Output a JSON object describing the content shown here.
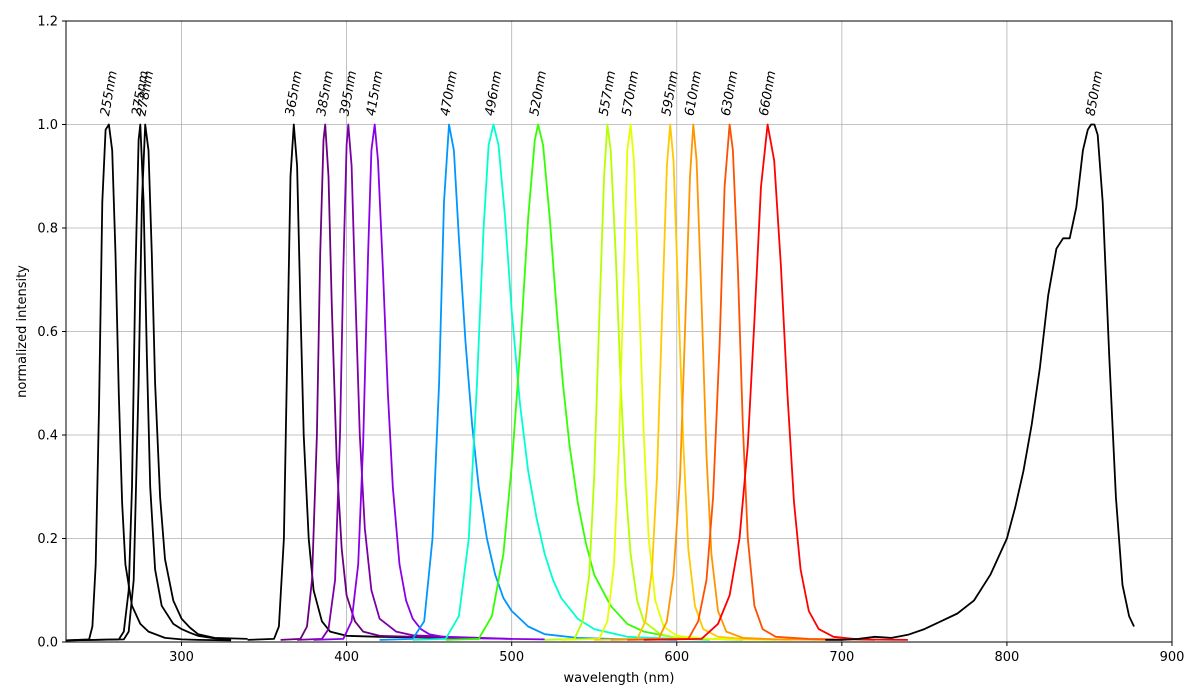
{
  "chart_data": {
    "type": "line",
    "title": "",
    "xlabel": "wavelength (nm)",
    "ylabel": "normalized intensity",
    "xlim": [
      230,
      900
    ],
    "ylim": [
      0,
      1.2
    ],
    "xticks": [
      300,
      400,
      500,
      600,
      700,
      800,
      900
    ],
    "yticks": [
      0.0,
      0.2,
      0.4,
      0.6,
      0.8,
      1.0,
      1.2
    ],
    "ytick_labels": [
      "0.0",
      "0.2",
      "0.4",
      "0.6",
      "0.8",
      "1.0",
      "1.2"
    ],
    "grid": true,
    "legend": false,
    "series": [
      {
        "label": "255nm",
        "color": "#000000",
        "peak": 256,
        "fwhm": 9,
        "tail": 0.012,
        "start": 230,
        "end": 330,
        "x": [
          230,
          244,
          246,
          248,
          250,
          252,
          254,
          256,
          258,
          260,
          262,
          264,
          266,
          270,
          275,
          280,
          290,
          300,
          310,
          330
        ],
        "y": [
          0.003,
          0.005,
          0.03,
          0.15,
          0.45,
          0.85,
          0.99,
          1.0,
          0.95,
          0.75,
          0.48,
          0.27,
          0.15,
          0.07,
          0.035,
          0.02,
          0.008,
          0.005,
          0.004,
          0.003
        ]
      },
      {
        "label": "275nm",
        "color": "#000000",
        "peak": 275,
        "fwhm": 7,
        "start": 230,
        "end": 330,
        "x": [
          230,
          262,
          265,
          268,
          270,
          272,
          274,
          275,
          277,
          279,
          281,
          284,
          288,
          295,
          300,
          305,
          310,
          320,
          330
        ],
        "y": [
          0.003,
          0.005,
          0.02,
          0.1,
          0.3,
          0.7,
          0.97,
          1.0,
          0.85,
          0.55,
          0.3,
          0.14,
          0.07,
          0.035,
          0.025,
          0.018,
          0.012,
          0.007,
          0.005
        ]
      },
      {
        "label": "278nm",
        "color": "#000000",
        "peak": 278,
        "fwhm": 8,
        "start": 230,
        "end": 340,
        "x": [
          230,
          265,
          268,
          271,
          274,
          276,
          278,
          280,
          282,
          284,
          287,
          290,
          295,
          300,
          305,
          310,
          320,
          340
        ],
        "y": [
          0.003,
          0.005,
          0.02,
          0.12,
          0.5,
          0.85,
          1.0,
          0.95,
          0.75,
          0.5,
          0.28,
          0.16,
          0.08,
          0.045,
          0.028,
          0.015,
          0.008,
          0.006
        ]
      },
      {
        "label": "365nm",
        "color": "#000000",
        "peak": 368,
        "fwhm": 8,
        "start": 340,
        "end": 460,
        "x": [
          340,
          356,
          359,
          362,
          364,
          366,
          368,
          370,
          372,
          374,
          377,
          380,
          385,
          390,
          400,
          420,
          460
        ],
        "y": [
          0.004,
          0.006,
          0.03,
          0.2,
          0.55,
          0.9,
          1.0,
          0.92,
          0.65,
          0.4,
          0.2,
          0.1,
          0.04,
          0.02,
          0.012,
          0.01,
          0.008
        ]
      },
      {
        "label": "385nm",
        "color": "#6a0080",
        "peak": 387,
        "fwhm": 9,
        "start": 360,
        "end": 480,
        "x": [
          360,
          372,
          376,
          379,
          382,
          384,
          386,
          387,
          389,
          391,
          394,
          397,
          400,
          405,
          410,
          420,
          440,
          480
        ],
        "y": [
          0.004,
          0.006,
          0.03,
          0.12,
          0.4,
          0.75,
          0.97,
          1.0,
          0.9,
          0.65,
          0.35,
          0.18,
          0.09,
          0.04,
          0.02,
          0.012,
          0.01,
          0.006
        ]
      },
      {
        "label": "395nm",
        "color": "#7b00a8",
        "peak": 401,
        "fwhm": 10,
        "start": 370,
        "end": 500,
        "x": [
          370,
          385,
          389,
          393,
          396,
          398,
          400,
          401,
          403,
          405,
          408,
          411,
          415,
          420,
          430,
          440,
          460,
          500
        ],
        "y": [
          0.004,
          0.006,
          0.025,
          0.12,
          0.4,
          0.72,
          0.96,
          1.0,
          0.92,
          0.7,
          0.4,
          0.22,
          0.1,
          0.045,
          0.02,
          0.013,
          0.01,
          0.006
        ]
      },
      {
        "label": "415nm",
        "color": "#8a00e6",
        "peak": 417,
        "fwhm": 13,
        "start": 380,
        "end": 520,
        "x": [
          380,
          398,
          403,
          407,
          410,
          413,
          415,
          417,
          419,
          422,
          425,
          428,
          432,
          436,
          440,
          445,
          450,
          460,
          480,
          520
        ],
        "y": [
          0.004,
          0.006,
          0.04,
          0.15,
          0.38,
          0.75,
          0.95,
          1.0,
          0.93,
          0.72,
          0.48,
          0.3,
          0.15,
          0.08,
          0.045,
          0.025,
          0.015,
          0.009,
          0.007,
          0.005
        ]
      },
      {
        "label": "470nm",
        "color": "#0096ff",
        "peak": 462,
        "fwhm": 20,
        "start": 420,
        "end": 600,
        "x": [
          420,
          440,
          447,
          452,
          456,
          459,
          462,
          465,
          468,
          472,
          476,
          480,
          485,
          490,
          495,
          500,
          510,
          520,
          540,
          560,
          600
        ],
        "y": [
          0.004,
          0.006,
          0.04,
          0.2,
          0.5,
          0.85,
          1.0,
          0.95,
          0.78,
          0.58,
          0.42,
          0.3,
          0.2,
          0.13,
          0.085,
          0.06,
          0.03,
          0.015,
          0.008,
          0.006,
          0.004
        ]
      },
      {
        "label": "496nm",
        "color": "#00ffd0",
        "peak": 489,
        "fwhm": 24,
        "start": 440,
        "end": 620,
        "x": [
          440,
          460,
          468,
          474,
          479,
          483,
          486,
          489,
          492,
          496,
          500,
          505,
          510,
          515,
          520,
          525,
          530,
          540,
          550,
          570,
          600,
          620
        ],
        "y": [
          0.004,
          0.006,
          0.05,
          0.2,
          0.5,
          0.8,
          0.96,
          1.0,
          0.96,
          0.82,
          0.64,
          0.46,
          0.33,
          0.24,
          0.17,
          0.12,
          0.085,
          0.045,
          0.025,
          0.01,
          0.006,
          0.004
        ]
      },
      {
        "label": "520nm",
        "color": "#32ff00",
        "peak": 516,
        "fwhm": 28,
        "start": 460,
        "end": 640,
        "x": [
          460,
          480,
          488,
          495,
          500,
          505,
          510,
          514,
          516,
          519,
          523,
          527,
          531,
          535,
          540,
          545,
          550,
          560,
          570,
          580,
          600,
          640
        ],
        "y": [
          0.004,
          0.006,
          0.05,
          0.17,
          0.34,
          0.56,
          0.82,
          0.97,
          1.0,
          0.96,
          0.82,
          0.65,
          0.5,
          0.38,
          0.27,
          0.19,
          0.13,
          0.07,
          0.035,
          0.02,
          0.008,
          0.004
        ]
      },
      {
        "label": "557nm",
        "color": "#b4ff00",
        "peak": 558,
        "fwhm": 12,
        "start": 520,
        "end": 660,
        "x": [
          520,
          538,
          543,
          547,
          550,
          553,
          556,
          558,
          560,
          563,
          566,
          569,
          572,
          576,
          580,
          590,
          600,
          620,
          660
        ],
        "y": [
          0.004,
          0.006,
          0.04,
          0.13,
          0.32,
          0.62,
          0.9,
          1.0,
          0.95,
          0.75,
          0.5,
          0.3,
          0.17,
          0.08,
          0.04,
          0.015,
          0.008,
          0.006,
          0.004
        ]
      },
      {
        "label": "570nm",
        "color": "#e6ff00",
        "peak": 572,
        "fwhm": 10,
        "start": 530,
        "end": 670,
        "x": [
          530,
          553,
          558,
          562,
          565,
          568,
          570,
          572,
          574,
          577,
          580,
          583,
          587,
          592,
          600,
          620,
          670
        ],
        "y": [
          0.004,
          0.006,
          0.04,
          0.15,
          0.38,
          0.72,
          0.95,
          1.0,
          0.93,
          0.68,
          0.4,
          0.2,
          0.08,
          0.03,
          0.012,
          0.006,
          0.004
        ]
      },
      {
        "label": "595nm",
        "color": "#ffc800",
        "peak": 596,
        "fwhm": 10,
        "start": 550,
        "end": 690,
        "x": [
          550,
          576,
          581,
          585,
          588,
          591,
          594,
          596,
          598,
          601,
          604,
          607,
          611,
          616,
          625,
          640,
          690
        ],
        "y": [
          0.004,
          0.006,
          0.04,
          0.14,
          0.32,
          0.62,
          0.92,
          1.0,
          0.93,
          0.66,
          0.38,
          0.18,
          0.07,
          0.025,
          0.01,
          0.006,
          0.004
        ]
      },
      {
        "label": "610nm",
        "color": "#ff9600",
        "peak": 610,
        "fwhm": 10,
        "start": 560,
        "end": 700,
        "x": [
          560,
          589,
          594,
          598,
          602,
          605,
          608,
          610,
          612,
          615,
          618,
          621,
          625,
          630,
          640,
          660,
          700
        ],
        "y": [
          0.004,
          0.006,
          0.04,
          0.13,
          0.32,
          0.6,
          0.9,
          1.0,
          0.93,
          0.66,
          0.36,
          0.17,
          0.06,
          0.02,
          0.008,
          0.005,
          0.004
        ]
      },
      {
        "label": "630nm",
        "color": "#ff5000",
        "peak": 632,
        "fwhm": 11,
        "start": 570,
        "end": 720,
        "x": [
          570,
          607,
          613,
          618,
          622,
          626,
          629,
          632,
          634,
          637,
          640,
          643,
          647,
          652,
          660,
          680,
          720
        ],
        "y": [
          0.004,
          0.006,
          0.04,
          0.12,
          0.28,
          0.58,
          0.88,
          1.0,
          0.95,
          0.72,
          0.42,
          0.2,
          0.07,
          0.025,
          0.01,
          0.006,
          0.004
        ]
      },
      {
        "label": "660nm",
        "color": "#ff0000",
        "peak": 655,
        "fwhm": 16,
        "start": 580,
        "end": 740,
        "x": [
          580,
          615,
          625,
          632,
          638,
          643,
          647,
          651,
          655,
          659,
          663,
          667,
          671,
          675,
          680,
          686,
          695,
          710,
          740
        ],
        "y": [
          0.004,
          0.006,
          0.035,
          0.09,
          0.2,
          0.38,
          0.62,
          0.88,
          1.0,
          0.93,
          0.73,
          0.48,
          0.27,
          0.14,
          0.06,
          0.025,
          0.01,
          0.005,
          0.004
        ]
      },
      {
        "label": "850nm",
        "color": "#000000",
        "peak": 853,
        "fwhm": 40,
        "start": 690,
        "end": 878,
        "x": [
          690,
          700,
          710,
          720,
          730,
          740,
          750,
          760,
          770,
          780,
          790,
          800,
          805,
          810,
          815,
          820,
          825,
          830,
          834,
          838,
          842,
          846,
          849,
          851,
          853,
          855,
          858,
          862,
          866,
          870,
          874,
          877
        ],
        "y": [
          0.004,
          0.004,
          0.006,
          0.01,
          0.008,
          0.014,
          0.025,
          0.04,
          0.055,
          0.08,
          0.13,
          0.2,
          0.26,
          0.33,
          0.42,
          0.53,
          0.67,
          0.76,
          0.78,
          0.78,
          0.84,
          0.95,
          0.99,
          1.0,
          1.0,
          0.98,
          0.85,
          0.55,
          0.28,
          0.11,
          0.05,
          0.03
        ]
      }
    ]
  }
}
